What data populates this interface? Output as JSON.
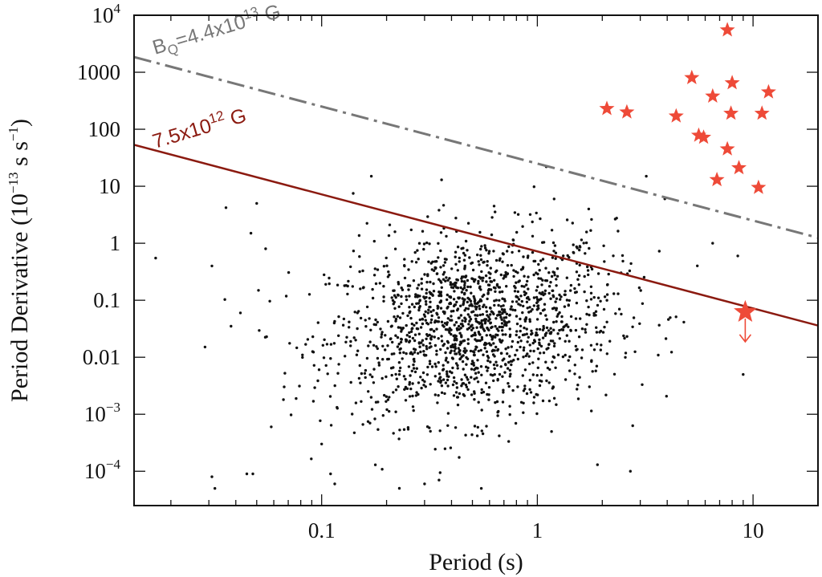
{
  "chart_data": {
    "type": "scatter",
    "xlabel": "Period (s)",
    "ylabel_prefix": "Period Derivative (10",
    "ylabel_exp1": "−13",
    "ylabel_mid": " s s",
    "ylabel_exp2": "−1",
    "ylabel_suffix": ")",
    "x_scale": "log",
    "y_scale": "log",
    "xlim": [
      0.0135,
      20
    ],
    "ylim": [
      2.5e-05,
      10000
    ],
    "x_ticks": [
      {
        "value": 0.1,
        "label": "0.1"
      },
      {
        "value": 1,
        "label": "1"
      },
      {
        "value": 10,
        "label": "10"
      }
    ],
    "y_ticks": [
      {
        "value": 10000,
        "base": "10",
        "exp": "4"
      },
      {
        "value": 1000,
        "base": "1000",
        "exp": ""
      },
      {
        "value": 100,
        "base": "100",
        "exp": ""
      },
      {
        "value": 10,
        "base": "10",
        "exp": ""
      },
      {
        "value": 1,
        "base": "1",
        "exp": ""
      },
      {
        "value": 0.1,
        "base": "0.1",
        "exp": ""
      },
      {
        "value": 0.01,
        "base": "0.01",
        "exp": ""
      },
      {
        "value": 0.001,
        "base": "10",
        "exp": "−3"
      },
      {
        "value": 0.0001,
        "base": "10",
        "exp": "−4"
      }
    ],
    "lines": [
      {
        "name_main": "B",
        "name_sub": "Q",
        "name_rest": "=4.4x10",
        "name_exp": "13",
        "name_unit": " G",
        "style": "dashdot",
        "color": "#777777",
        "p_pdot_product": 25
      },
      {
        "name_main": "7.5x10",
        "name_sub": "",
        "name_rest": "",
        "name_exp": "12",
        "name_unit": " G",
        "style": "solid",
        "color": "#8b1a10",
        "p_pdot_product": 0.72
      }
    ],
    "magnetar_series": {
      "marker": "star",
      "color": "#ee4a38",
      "points": [
        [
          7.6,
          5500
        ],
        [
          5.2,
          800
        ],
        [
          8.0,
          650
        ],
        [
          6.5,
          380
        ],
        [
          11.8,
          450
        ],
        [
          2.1,
          230
        ],
        [
          2.6,
          200
        ],
        [
          4.4,
          170
        ],
        [
          7.9,
          190
        ],
        [
          11.0,
          190
        ],
        [
          5.6,
          78
        ],
        [
          5.9,
          72
        ],
        [
          7.6,
          45
        ],
        [
          8.6,
          21
        ],
        [
          6.8,
          13
        ],
        [
          10.6,
          9.5
        ]
      ]
    },
    "upper_limit_point": {
      "x": 9.2,
      "y": 0.062,
      "color": "#ee4a38"
    },
    "pulsar_series": {
      "marker": "dot",
      "color": "#111111",
      "count": 1600,
      "center_logP": -0.3,
      "sigma_logP": 0.33,
      "center_logPdot": -1.45,
      "sigma_logPdot": 0.8,
      "outliers": [
        [
          0.017,
          0.55
        ],
        [
          0.031,
          0.4
        ],
        [
          0.036,
          4.2
        ],
        [
          0.031,
          8e-05
        ],
        [
          0.032,
          5e-05
        ],
        [
          0.038,
          0.035
        ],
        [
          0.042,
          0.06
        ],
        [
          0.047,
          1.5
        ],
        [
          0.05,
          5.0
        ],
        [
          0.055,
          0.8
        ],
        [
          0.045,
          9e-05
        ],
        [
          0.048,
          9e-05
        ],
        [
          0.1,
          0.0003
        ],
        [
          0.11,
          9e-05
        ],
        [
          0.115,
          6e-05
        ],
        [
          0.14,
          7.5
        ],
        [
          0.17,
          15
        ],
        [
          1.1,
          22
        ],
        [
          3.2,
          15
        ],
        [
          3.9,
          6
        ],
        [
          6.5,
          1.0
        ],
        [
          8.5,
          0.6
        ],
        [
          9.0,
          0.005
        ],
        [
          2.7,
          0.0001
        ],
        [
          1.9,
          0.00013
        ],
        [
          0.3,
          6e-05
        ],
        [
          0.35,
          7e-05
        ],
        [
          0.55,
          5e-05
        ]
      ]
    }
  }
}
